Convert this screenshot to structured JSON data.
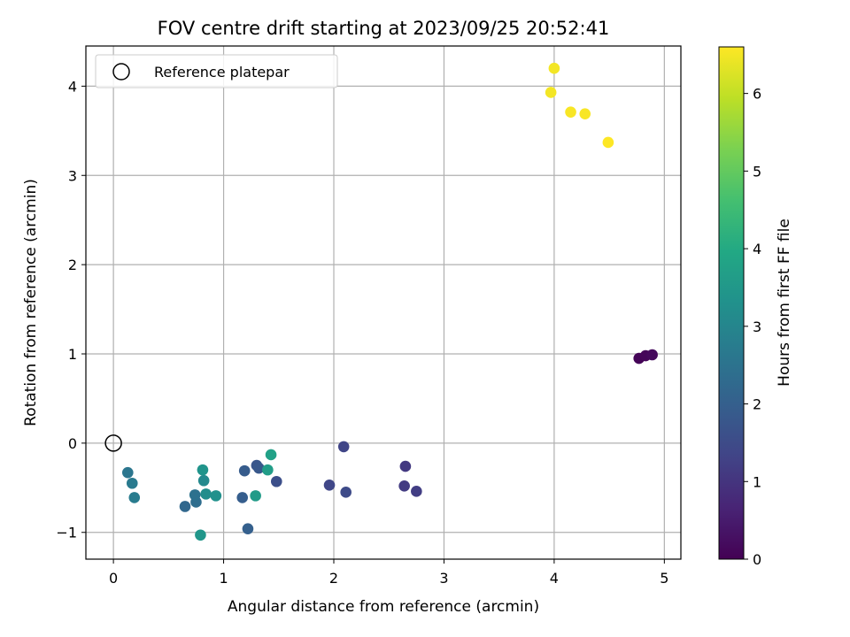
{
  "chart_data": {
    "type": "scatter",
    "title": "FOV centre drift starting at 2023/09/25 20:52:41",
    "xlabel": "Angular distance from reference (arcmin)",
    "ylabel": "Rotation from reference (arcmin)",
    "xlim": [
      -0.25,
      5.15
    ],
    "ylim": [
      -1.3,
      4.45
    ],
    "xticks": [
      0,
      1,
      2,
      3,
      4,
      5
    ],
    "xtick_labels": [
      "0",
      "1",
      "2",
      "3",
      "4",
      "5"
    ],
    "yticks": [
      -1,
      0,
      1,
      2,
      3,
      4
    ],
    "ytick_labels": [
      "−1",
      "0",
      "1",
      "2",
      "3",
      "4"
    ],
    "grid": true,
    "legend": {
      "placement": "top-left",
      "entries": [
        {
          "label": "Reference platepar",
          "marker": "open-circle"
        }
      ]
    },
    "reference_point": {
      "x": 0,
      "y": 0
    },
    "colorbar": {
      "label": "Hours from first FF file",
      "colormap": "viridis",
      "min": 0,
      "max": 6.6,
      "ticks": [
        0,
        1,
        2,
        3,
        4,
        5,
        6
      ],
      "tick_labels": [
        "0",
        "1",
        "2",
        "3",
        "4",
        "5",
        "6"
      ]
    },
    "points": [
      {
        "x": 4.77,
        "y": 0.95,
        "hours": 0.05
      },
      {
        "x": 4.83,
        "y": 0.98,
        "hours": 0.1
      },
      {
        "x": 4.89,
        "y": 0.99,
        "hours": 0.15
      },
      {
        "x": 2.65,
        "y": -0.26,
        "hours": 1.1
      },
      {
        "x": 2.64,
        "y": -0.48,
        "hours": 1.15
      },
      {
        "x": 2.75,
        "y": -0.54,
        "hours": 1.2
      },
      {
        "x": 2.09,
        "y": -0.04,
        "hours": 1.35
      },
      {
        "x": 1.96,
        "y": -0.47,
        "hours": 1.4
      },
      {
        "x": 2.11,
        "y": -0.55,
        "hours": 1.5
      },
      {
        "x": 1.48,
        "y": -0.43,
        "hours": 1.6
      },
      {
        "x": 1.3,
        "y": -0.25,
        "hours": 1.75
      },
      {
        "x": 1.32,
        "y": -0.28,
        "hours": 1.8
      },
      {
        "x": 1.19,
        "y": -0.31,
        "hours": 1.9
      },
      {
        "x": 1.17,
        "y": -0.61,
        "hours": 1.95
      },
      {
        "x": 1.22,
        "y": -0.96,
        "hours": 2.0
      },
      {
        "x": 0.65,
        "y": -0.71,
        "hours": 2.2
      },
      {
        "x": 0.75,
        "y": -0.66,
        "hours": 2.35
      },
      {
        "x": 0.74,
        "y": -0.58,
        "hours": 2.45
      },
      {
        "x": 0.13,
        "y": -0.33,
        "hours": 2.6
      },
      {
        "x": 0.17,
        "y": -0.45,
        "hours": 2.7
      },
      {
        "x": 0.19,
        "y": -0.61,
        "hours": 2.75
      },
      {
        "x": 0.82,
        "y": -0.42,
        "hours": 3.1
      },
      {
        "x": 0.84,
        "y": -0.57,
        "hours": 3.2
      },
      {
        "x": 0.93,
        "y": -0.59,
        "hours": 3.3
      },
      {
        "x": 0.81,
        "y": -0.3,
        "hours": 3.4
      },
      {
        "x": 0.79,
        "y": -1.03,
        "hours": 3.45
      },
      {
        "x": 1.29,
        "y": -0.59,
        "hours": 3.6
      },
      {
        "x": 1.4,
        "y": -0.3,
        "hours": 3.65
      },
      {
        "x": 1.43,
        "y": -0.13,
        "hours": 3.75
      },
      {
        "x": 4.0,
        "y": 4.2,
        "hours": 6.5
      },
      {
        "x": 3.97,
        "y": 3.93,
        "hours": 6.5
      },
      {
        "x": 4.15,
        "y": 3.71,
        "hours": 6.55
      },
      {
        "x": 4.28,
        "y": 3.69,
        "hours": 6.55
      },
      {
        "x": 4.49,
        "y": 3.37,
        "hours": 6.6
      }
    ]
  }
}
